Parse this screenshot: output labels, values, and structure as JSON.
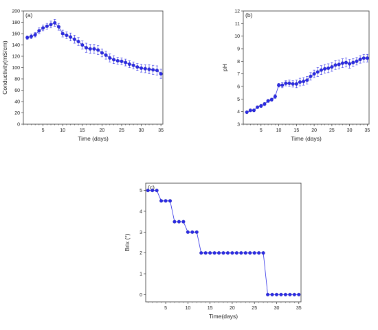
{
  "chart_data": [
    {
      "type": "scatter",
      "panel_label": "(a)",
      "title": "",
      "xlabel": "Time (days)",
      "ylabel": "Conductivity(mS/cm)",
      "xlim": [
        0,
        35.5
      ],
      "ylim": [
        0,
        200
      ],
      "xticks": [
        5,
        10,
        15,
        20,
        25,
        30,
        35
      ],
      "yticks": [
        0,
        20,
        40,
        60,
        80,
        100,
        120,
        140,
        160,
        180,
        200
      ],
      "color": "#2a2ae6",
      "connect_points": true,
      "error_bars": true,
      "grid": false,
      "x": [
        1,
        2,
        3,
        4,
        5,
        6,
        7,
        8,
        9,
        10,
        11,
        12,
        13,
        14,
        15,
        16,
        17,
        18,
        19,
        20,
        21,
        22,
        23,
        24,
        25,
        26,
        27,
        28,
        29,
        30,
        31,
        32,
        33,
        34,
        35
      ],
      "y": [
        153,
        155,
        158,
        165,
        170,
        173,
        176,
        179,
        172,
        160,
        157,
        154,
        150,
        146,
        140,
        135,
        133,
        133,
        131,
        126,
        122,
        117,
        114,
        112,
        111,
        109,
        106,
        104,
        101,
        99,
        98,
        97,
        96,
        95,
        89
      ],
      "yerr": [
        3,
        4,
        4,
        5,
        5,
        5,
        6,
        6,
        6,
        6,
        6,
        7,
        7,
        7,
        7,
        8,
        8,
        8,
        8,
        7,
        7,
        7,
        7,
        6,
        6,
        6,
        6,
        6,
        6,
        7,
        7,
        8,
        8,
        8,
        8
      ]
    },
    {
      "type": "scatter",
      "panel_label": "(b)",
      "title": "",
      "xlabel": "Time (days)",
      "ylabel": "pH",
      "xlim": [
        0,
        35.5
      ],
      "ylim": [
        3,
        12
      ],
      "xticks": [
        5,
        10,
        15,
        20,
        25,
        30,
        35
      ],
      "yticks": [
        3,
        4,
        5,
        6,
        7,
        8,
        9,
        10,
        11,
        12
      ],
      "color": "#2a2ae6",
      "connect_points": true,
      "error_bars": true,
      "grid": false,
      "x": [
        1,
        2,
        3,
        4,
        5,
        6,
        7,
        8,
        9,
        10,
        11,
        12,
        13,
        14,
        15,
        16,
        17,
        18,
        19,
        20,
        21,
        22,
        23,
        24,
        25,
        26,
        27,
        28,
        29,
        30,
        31,
        32,
        33,
        34,
        35
      ],
      "y": [
        3.95,
        4.1,
        4.1,
        4.35,
        4.45,
        4.6,
        4.85,
        4.95,
        5.2,
        6.1,
        6.1,
        6.25,
        6.25,
        6.2,
        6.2,
        6.35,
        6.4,
        6.5,
        6.8,
        7.0,
        7.15,
        7.3,
        7.4,
        7.45,
        7.55,
        7.7,
        7.75,
        7.85,
        7.9,
        7.8,
        7.9,
        8.0,
        8.15,
        8.25,
        8.25
      ],
      "yerr": [
        0.08,
        0.1,
        0.1,
        0.1,
        0.12,
        0.12,
        0.12,
        0.12,
        0.15,
        0.15,
        0.2,
        0.2,
        0.25,
        0.25,
        0.3,
        0.3,
        0.3,
        0.3,
        0.3,
        0.3,
        0.35,
        0.35,
        0.35,
        0.35,
        0.35,
        0.35,
        0.35,
        0.35,
        0.35,
        0.35,
        0.3,
        0.3,
        0.3,
        0.3,
        0.3
      ]
    },
    {
      "type": "scatter",
      "panel_label": "(c)",
      "title": "",
      "xlabel": "Time(days)",
      "ylabel": "Brix (°)",
      "xlim": [
        0.5,
        35.5
      ],
      "ylim": [
        -0.35,
        5.35
      ],
      "xticks": [
        5,
        10,
        15,
        20,
        25,
        30,
        35
      ],
      "yticks": [
        0,
        1,
        2,
        3,
        4,
        5
      ],
      "color": "#2a2ae6",
      "connect_points": true,
      "error_bars": false,
      "grid": false,
      "x": [
        1,
        2,
        3,
        4,
        5,
        6,
        7,
        8,
        9,
        10,
        11,
        12,
        13,
        14,
        15,
        16,
        17,
        18,
        19,
        20,
        21,
        22,
        23,
        24,
        25,
        26,
        27,
        28,
        29,
        30,
        31,
        32,
        33,
        34,
        35
      ],
      "y": [
        5,
        5,
        5,
        4.5,
        4.5,
        4.5,
        3.5,
        3.5,
        3.5,
        3,
        3,
        3,
        2,
        2,
        2,
        2,
        2,
        2,
        2,
        2,
        2,
        2,
        2,
        2,
        2,
        2,
        2,
        0,
        0,
        0,
        0,
        0,
        0,
        0,
        0
      ]
    }
  ]
}
